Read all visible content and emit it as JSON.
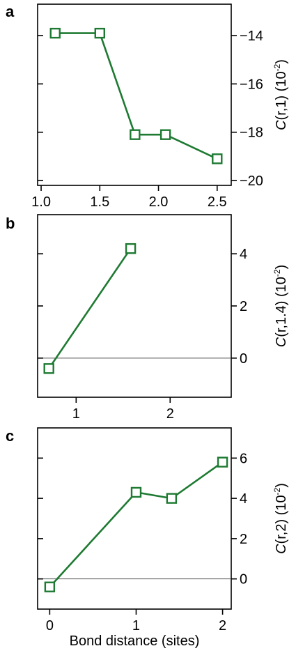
{
  "colors": {
    "series": "#1e7a32",
    "axis": "#000000",
    "zero_line": "#555555"
  },
  "chart_data": [
    {
      "type": "line",
      "panel": "a",
      "ylabel_main": "C",
      "ylabel_rest": "(r,1) (10",
      "ylabel_exp": "-2",
      "ylabel_close": ")",
      "x": [
        1.12,
        1.5,
        1.8,
        2.06,
        2.5
      ],
      "series": [
        {
          "values": [
            -13.9,
            -13.9,
            -18.1,
            -18.1,
            -19.1
          ]
        }
      ],
      "xlim": [
        0.97,
        2.62
      ],
      "ylim": [
        -20.2,
        -12.7
      ],
      "xticks": [
        1.0,
        1.5,
        2.0,
        2.5
      ],
      "xtick_labels": [
        "1.0",
        "1.5",
        "2.0",
        "2.5"
      ],
      "yticks": [
        -14,
        -16,
        -18,
        -20
      ],
      "ytick_labels": [
        "−14",
        "−16",
        "−18",
        "−20"
      ],
      "zero_line": false,
      "ytick_side": "right"
    },
    {
      "type": "line",
      "panel": "b",
      "ylabel_main": "C",
      "ylabel_rest": "(r,1.4) (10",
      "ylabel_exp": "-2",
      "ylabel_close": ")",
      "x": [
        0.71,
        1.58
      ],
      "series": [
        {
          "values": [
            -0.4,
            4.2
          ]
        }
      ],
      "xlim": [
        0.59,
        2.65
      ],
      "ylim": [
        -1.5,
        5.5
      ],
      "xticks": [
        1,
        2
      ],
      "xtick_labels": [
        "1",
        "2"
      ],
      "yticks": [
        4,
        2,
        0
      ],
      "ytick_labels": [
        "4",
        "2",
        "0"
      ],
      "zero_line": true,
      "ytick_side": "right"
    },
    {
      "type": "line",
      "panel": "c",
      "ylabel_main": "C",
      "ylabel_rest": "(r,2) (10",
      "ylabel_exp": "-2",
      "ylabel_close": ")",
      "xlabel": "Bond distance (sites)",
      "x": [
        0,
        1,
        1.41,
        2
      ],
      "series": [
        {
          "values": [
            -0.4,
            4.3,
            4.0,
            5.8
          ]
        }
      ],
      "xlim": [
        -0.14,
        2.1
      ],
      "ylim": [
        -1.5,
        7.5
      ],
      "xticks": [
        0,
        1,
        2
      ],
      "xtick_labels": [
        "0",
        "1",
        "2"
      ],
      "yticks": [
        6,
        4,
        2,
        0
      ],
      "ytick_labels": [
        "6",
        "4",
        "2",
        "0"
      ],
      "zero_line": true,
      "ytick_side": "right"
    }
  ]
}
